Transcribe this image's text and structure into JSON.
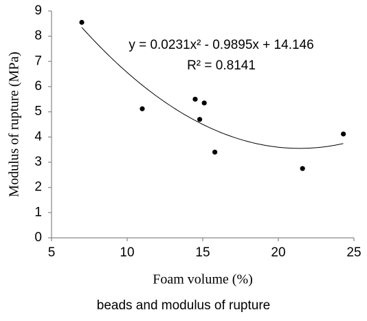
{
  "chart_data": {
    "type": "scatter",
    "x_label": "Foam volume (%)",
    "y_label": "Modulus of rupture (MPa)",
    "caption": "beads and modulus of rupture",
    "x": [
      7.0,
      11.0,
      14.5,
      15.1,
      14.8,
      15.8,
      21.6,
      24.3
    ],
    "values": [
      8.55,
      5.12,
      5.5,
      5.35,
      4.7,
      3.4,
      2.75,
      4.12
    ],
    "color": "#000000",
    "trendline": {
      "equation": "y = 0.0231x² - 0.9895x + 14.146",
      "r_squared": "R² = 0.8141",
      "coefficients": [
        0.0231,
        -0.9895,
        14.146
      ]
    },
    "xlim": [
      5,
      25
    ],
    "xticks": [
      5,
      10,
      15,
      20,
      25
    ],
    "ylim": [
      0,
      9
    ],
    "yticks": [
      0,
      1,
      2,
      3,
      4,
      5,
      6,
      7,
      8,
      9
    ]
  }
}
